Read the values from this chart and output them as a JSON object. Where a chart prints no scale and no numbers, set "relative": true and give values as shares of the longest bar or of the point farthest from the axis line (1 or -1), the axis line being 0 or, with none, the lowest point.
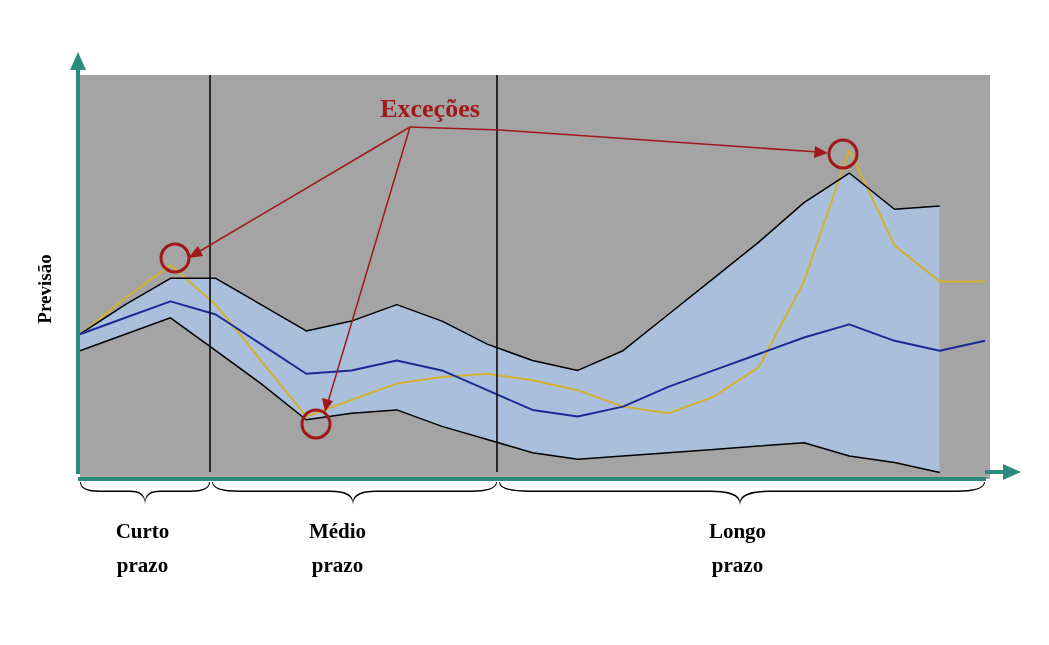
{
  "chart_data": {
    "type": "line",
    "ylabel": "Previsão",
    "annotations": [
      "Exceções",
      "Curto prazo",
      "Médio prazo",
      "Longo prazo"
    ],
    "categories": [
      null,
      null,
      null,
      null,
      null,
      null,
      null,
      null,
      null,
      null,
      null,
      null,
      null,
      null,
      null,
      null,
      null,
      null,
      null,
      null,
      null
    ],
    "relative": true,
    "legend": false,
    "marker": "none",
    "line_style": "solid",
    "series": [
      {
        "color": "#1c2a96",
        "values": [
          0.44,
          0.49,
          0.54,
          0.5,
          0.41,
          0.32,
          0.33,
          0.36,
          0.33,
          0.27,
          0.21,
          0.19,
          0.22,
          0.28,
          0.33,
          0.38,
          0.43,
          0.47,
          0.42,
          0.39,
          0.42
        ],
        "lower": [
          0.39,
          0.44,
          0.49,
          0.39,
          0.29,
          0.18,
          0.2,
          0.21,
          0.16,
          0.12,
          0.08,
          0.06,
          0.07,
          0.08,
          0.09,
          0.1,
          0.11,
          0.07,
          0.05,
          0.02,
          null
        ],
        "upper": [
          0.44,
          0.53,
          0.61,
          0.61,
          0.53,
          0.45,
          0.48,
          0.53,
          0.48,
          0.41,
          0.36,
          0.33,
          0.39,
          0.5,
          0.61,
          0.72,
          0.84,
          0.93,
          0.82,
          0.83,
          null
        ]
      },
      {
        "color": "#000000",
        "values": [
          0.44,
          0.53,
          0.61,
          0.61,
          0.53,
          0.45,
          0.48,
          0.53,
          0.48,
          0.41,
          0.36,
          0.33,
          0.39,
          0.5,
          0.61,
          0.72,
          0.84,
          0.93,
          0.82,
          0.83,
          null
        ]
      },
      {
        "color": "#000000",
        "values": [
          0.39,
          0.44,
          0.49,
          0.39,
          0.29,
          0.18,
          0.2,
          0.21,
          0.16,
          0.12,
          0.08,
          0.06,
          0.07,
          0.08,
          0.09,
          0.1,
          0.11,
          0.07,
          0.05,
          0.02,
          null
        ]
      },
      {
        "color": "#d4b030",
        "values": [
          0.44,
          0.55,
          0.65,
          0.53,
          0.36,
          0.19,
          0.24,
          0.29,
          0.31,
          0.32,
          0.3,
          0.27,
          0.22,
          0.2,
          0.25,
          0.34,
          0.6,
          1,
          0.71,
          0.6,
          0.6
        ]
      }
    ]
  }
}
